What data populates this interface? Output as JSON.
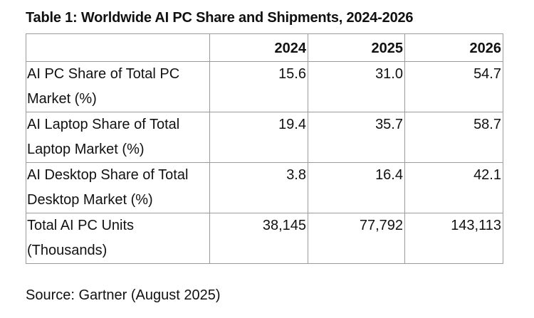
{
  "title": "Table 1: Worldwide AI PC Share and Shipments, 2024-2026",
  "table": {
    "columns": [
      "2024",
      "2025",
      "2026"
    ],
    "rows": [
      {
        "label": "AI PC Share of Total PC Market (%)",
        "values": [
          "15.6",
          "31.0",
          "54.7"
        ]
      },
      {
        "label": "AI Laptop Share of Total Laptop Market (%)",
        "values": [
          "19.4",
          "35.7",
          "58.7"
        ]
      },
      {
        "label": "AI Desktop Share of Total Desktop Market (%)",
        "values": [
          "3.8",
          "16.4",
          "42.1"
        ]
      },
      {
        "label": "Total AI PC Units (Thousands)",
        "values": [
          "38,145",
          "77,792",
          "143,113"
        ]
      }
    ]
  },
  "source": "Source: Gartner (August 2025)"
}
